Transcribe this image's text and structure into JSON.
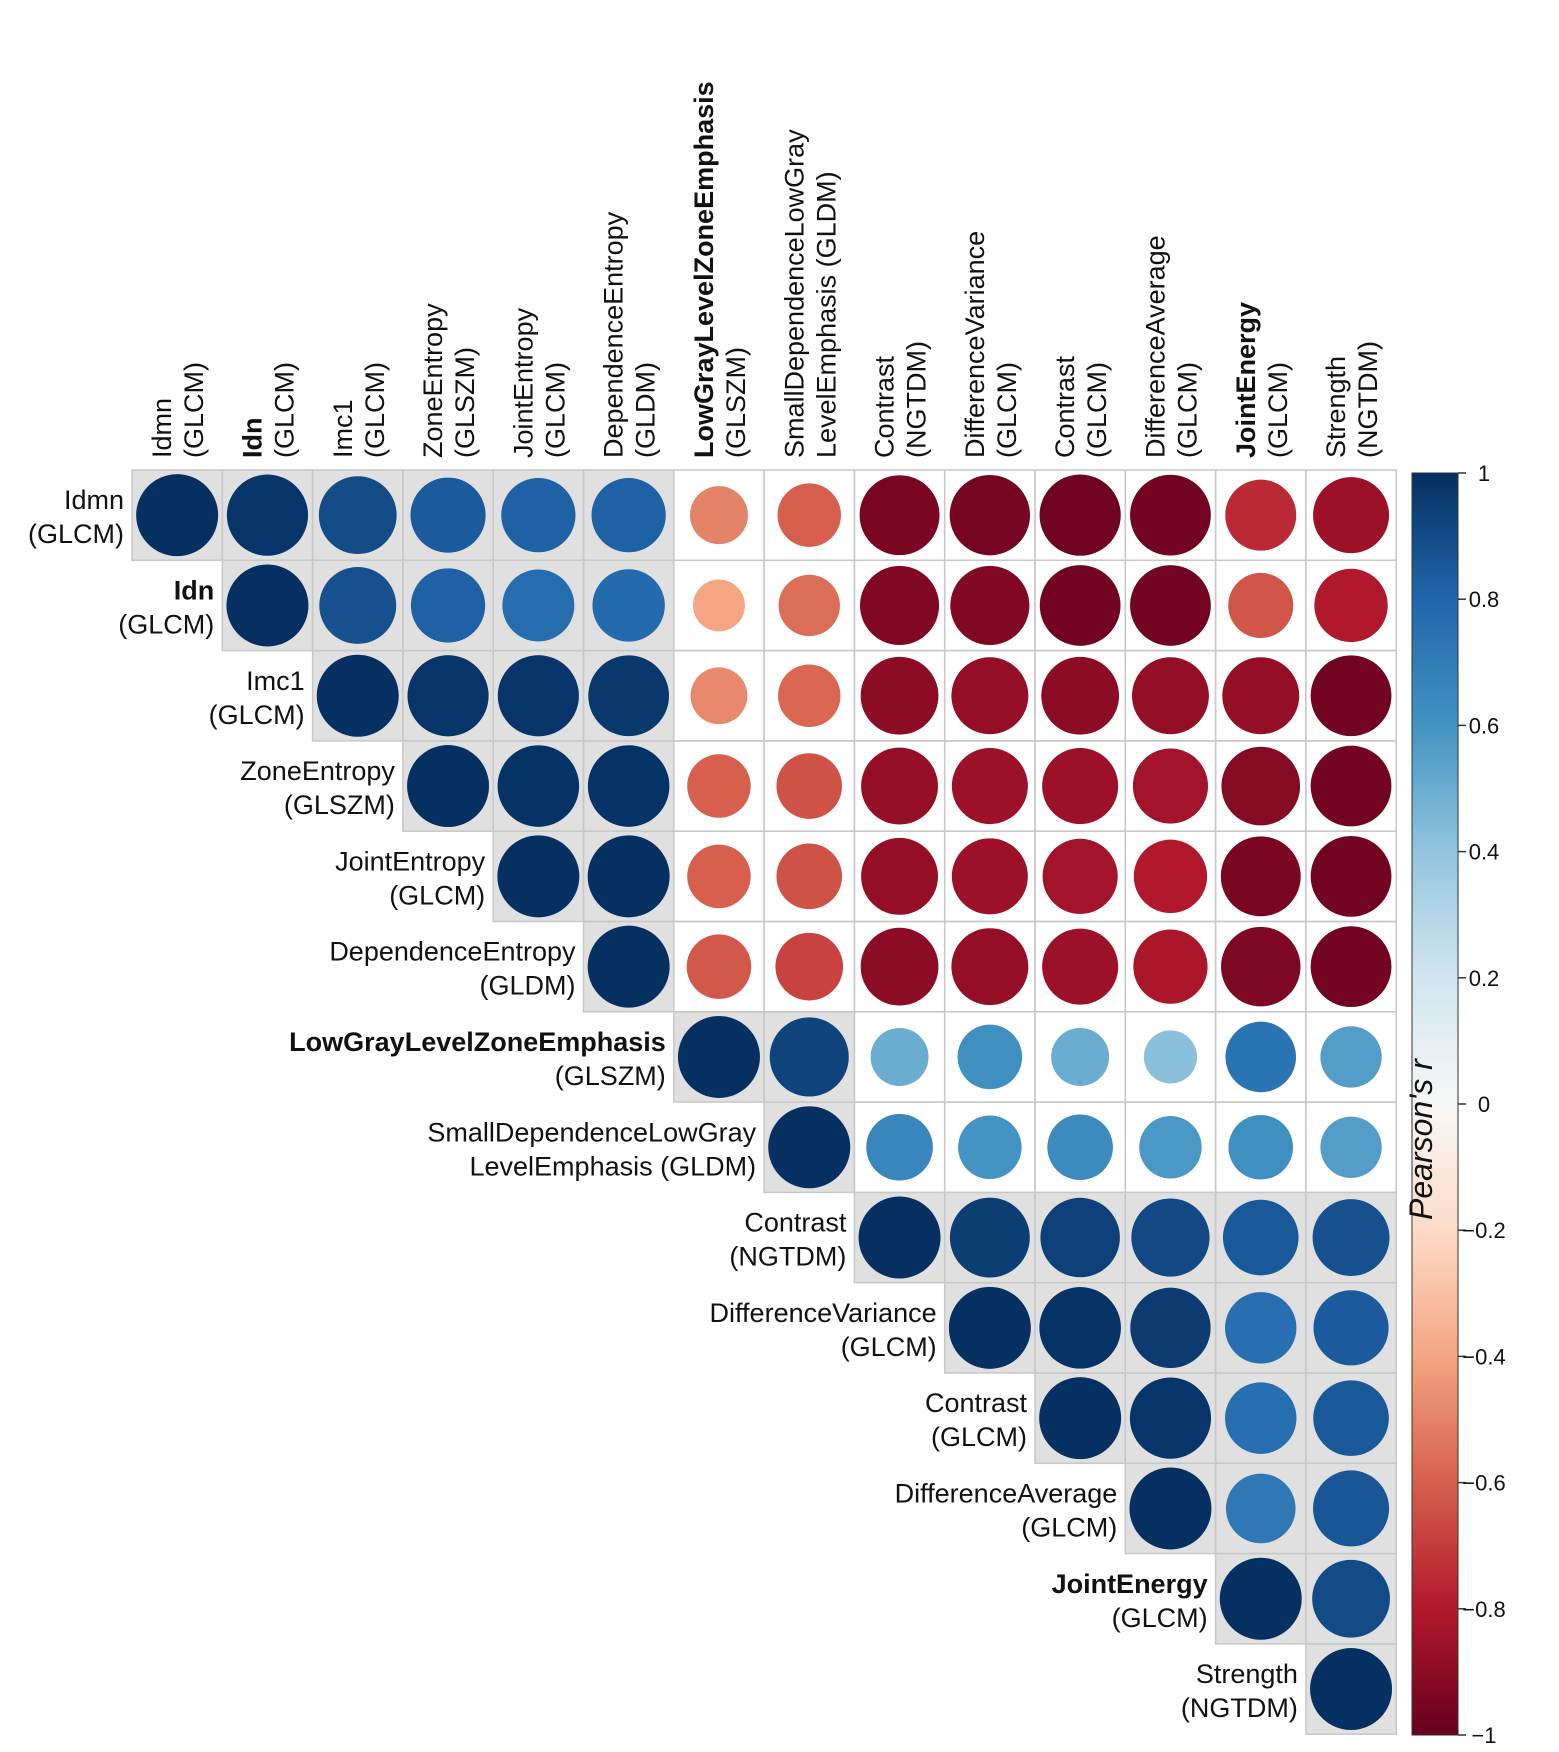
{
  "chart_data": {
    "type": "heatmap",
    "subtype": "correlation-matrix-upper-triangle-circles",
    "variables": [
      {
        "name": "Idmn",
        "family": "(GLCM)",
        "bold": false
      },
      {
        "name": "Idn",
        "family": "(GLCM)",
        "bold": true
      },
      {
        "name": "Imc1",
        "family": "(GLCM)",
        "bold": false
      },
      {
        "name": "ZoneEntropy",
        "family": "(GLSZM)",
        "bold": false
      },
      {
        "name": "JointEntropy",
        "family": "(GLCM)",
        "bold": false
      },
      {
        "name": "DependenceEntropy",
        "family": "(GLDM)",
        "bold": false
      },
      {
        "name": "LowGrayLevelZoneEmphasis",
        "family": "(GLSZM)",
        "bold": true
      },
      {
        "name": "SmallDependenceLowGray",
        "family": "LevelEmphasis (GLDM)",
        "bold": false
      },
      {
        "name": "Contrast",
        "family": "(NGTDM)",
        "bold": false
      },
      {
        "name": "DifferenceVariance",
        "family": "(GLCM)",
        "bold": false
      },
      {
        "name": "Contrast",
        "family": "(GLCM)",
        "bold": false
      },
      {
        "name": "DifferenceAverage",
        "family": "(GLCM)",
        "bold": false
      },
      {
        "name": "JointEnergy",
        "family": "(GLCM)",
        "bold": true
      },
      {
        "name": "Strength",
        "family": "(NGTDM)",
        "bold": false
      }
    ],
    "matrix": [
      [
        1.0,
        0.98,
        0.9,
        0.84,
        0.82,
        0.82,
        -0.5,
        -0.6,
        -0.95,
        -0.96,
        -0.98,
        -0.97,
        -0.75,
        -0.86
      ],
      [
        0.98,
        1.0,
        0.88,
        0.82,
        0.77,
        0.78,
        -0.4,
        -0.56,
        -0.93,
        -0.93,
        -0.97,
        -0.97,
        -0.63,
        -0.8
      ],
      [
        0.9,
        0.88,
        1.0,
        0.98,
        0.98,
        0.97,
        -0.48,
        -0.58,
        -0.9,
        -0.88,
        -0.9,
        -0.88,
        -0.88,
        -0.97
      ],
      [
        0.84,
        0.82,
        0.98,
        1.0,
        0.99,
        0.99,
        -0.6,
        -0.64,
        -0.88,
        -0.86,
        -0.86,
        -0.84,
        -0.92,
        -0.97
      ],
      [
        0.82,
        0.77,
        0.98,
        0.99,
        1.0,
        1.0,
        -0.6,
        -0.64,
        -0.88,
        -0.86,
        -0.84,
        -0.8,
        -0.95,
        -0.97
      ],
      [
        0.82,
        0.78,
        0.97,
        0.99,
        1.0,
        1.0,
        -0.62,
        -0.68,
        -0.9,
        -0.88,
        -0.86,
        -0.82,
        -0.94,
        -0.97
      ],
      [
        -0.5,
        -0.4,
        -0.48,
        -0.6,
        -0.6,
        -0.62,
        1.0,
        0.93,
        0.5,
        0.62,
        0.5,
        0.42,
        0.74,
        0.56
      ],
      [
        -0.6,
        -0.56,
        -0.58,
        -0.64,
        -0.64,
        -0.68,
        0.93,
        1.0,
        0.66,
        0.6,
        0.64,
        0.58,
        0.62,
        0.56
      ],
      [
        -0.95,
        -0.93,
        -0.9,
        -0.88,
        -0.88,
        -0.9,
        0.5,
        0.66,
        1.0,
        0.95,
        0.94,
        0.91,
        0.85,
        0.88
      ],
      [
        -0.96,
        -0.93,
        -0.88,
        -0.86,
        -0.86,
        -0.88,
        0.62,
        0.6,
        0.95,
        1.0,
        0.99,
        0.96,
        0.76,
        0.84
      ],
      [
        -0.98,
        -0.97,
        -0.9,
        -0.86,
        -0.84,
        -0.86,
        0.5,
        0.64,
        0.94,
        0.99,
        1.0,
        0.98,
        0.76,
        0.85
      ],
      [
        -0.97,
        -0.97,
        -0.88,
        -0.84,
        -0.8,
        -0.82,
        0.42,
        0.58,
        0.91,
        0.96,
        0.98,
        1.0,
        0.72,
        0.86
      ],
      [
        -0.75,
        -0.63,
        -0.88,
        -0.92,
        -0.95,
        -0.94,
        0.74,
        0.62,
        0.85,
        0.76,
        0.76,
        0.72,
        1.0,
        0.9
      ],
      [
        -0.86,
        -0.8,
        -0.97,
        -0.97,
        -0.97,
        -0.97,
        0.56,
        0.56,
        0.88,
        0.84,
        0.85,
        0.86,
        0.9,
        1.0
      ]
    ],
    "highlight_blocks": [
      [
        0,
        5
      ],
      [
        6,
        7
      ],
      [
        8,
        13
      ]
    ],
    "legend": {
      "title": "Pearson's r",
      "ticks": [
        "1",
        "0.8",
        "0.6",
        "0.4",
        "0.2",
        "0",
        "−0.2",
        "−0.4",
        "−0.6",
        "−0.8",
        "−1"
      ],
      "range": [
        -1,
        1
      ],
      "placement": "right"
    },
    "colors": {
      "high": "#053061",
      "mid_high": "#4393c3",
      "mid": "#f7f7f7",
      "mid_low": "#d6604d",
      "low": "#67001f",
      "block_bg": "#e0e0e0",
      "grid": "#c8c8c8"
    }
  }
}
